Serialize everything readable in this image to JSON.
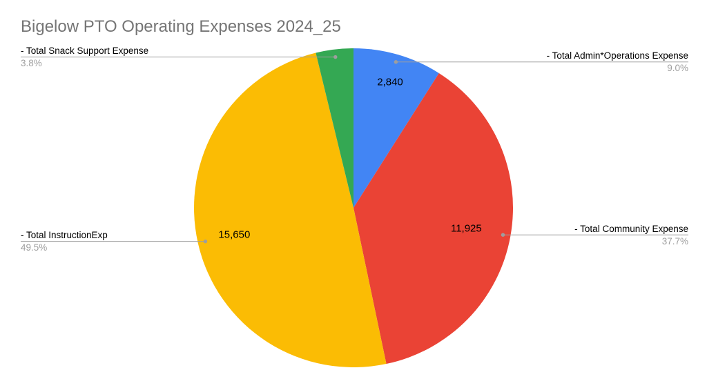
{
  "title": "Bigelow PTO Operating Expenses 2024_25",
  "chart_data": {
    "type": "pie",
    "title": "Bigelow PTO Operating Expenses 2024_25",
    "start_angle": "12-oclock",
    "direction": "clockwise",
    "legend_position": "labeled-callouts",
    "slices": [
      {
        "name": "- Total Admin*Operations Expense",
        "value": 2840,
        "value_label": "2,840",
        "pct": 9.0,
        "pct_label": "9.0%",
        "color": "#4285F4",
        "callout_side": "right"
      },
      {
        "name": "- Total Community Expense",
        "value": 11925,
        "value_label": "11,925",
        "pct": 37.7,
        "pct_label": "37.7%",
        "color": "#EA4335",
        "callout_side": "right"
      },
      {
        "name": "- Total InstructionExp",
        "value": 15650,
        "value_label": "15,650",
        "pct": 49.5,
        "pct_label": "49.5%",
        "color": "#FBBC04",
        "callout_side": "left"
      },
      {
        "name": "- Total Snack Support Expense",
        "value_label": "",
        "pct": 3.8,
        "pct_label": "3.8%",
        "color": "#34A853",
        "callout_side": "left"
      }
    ],
    "style": {
      "background": "#FFFFFF",
      "title_color": "#757575",
      "label_color": "#000000",
      "percent_color": "#9E9E9E",
      "leader_color": "#9E9E9E",
      "value_label_color": "#000000"
    }
  }
}
